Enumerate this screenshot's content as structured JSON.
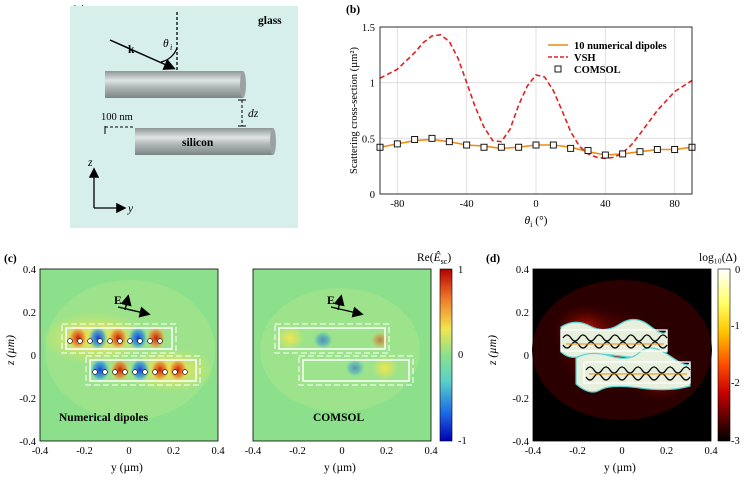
{
  "panels": {
    "a": {
      "label": "(a)",
      "medium": "glass",
      "wave_vector": "k",
      "angle_symbol": "θ",
      "angle_subscript": "i",
      "gap_label": "dz",
      "offset_label": "100 nm",
      "rod_label": "silicon",
      "axis_z": "z",
      "axis_y": "y",
      "colors": {
        "background": "#d6efeb",
        "rod": "#b7bdbd"
      }
    },
    "b": {
      "label": "(b)"
    },
    "c": {
      "label": "(c)",
      "left_title": "Numerical dipoles",
      "right_title": "COMSOL",
      "field_label": "E",
      "xlabel": "y (µm)",
      "ylabel": "z (µm)",
      "x_ticks": [
        "-0.4",
        "-0.2",
        "0",
        "0.2",
        "0.4"
      ],
      "y_ticks": [
        "0.4",
        "0.2",
        "0",
        "-0.2",
        "-0.4"
      ],
      "colorbar_title_prefix": "Re(",
      "colorbar_title_symbol": "Ê",
      "colorbar_title_sub": "sc",
      "colorbar_title_suffix": ")",
      "colorbar_ticks": [
        "1",
        "0",
        "-1"
      ],
      "colormap": [
        "#0000b4",
        "#1e6ee6",
        "#5ad2c8",
        "#8ce08c",
        "#f0e650",
        "#f07828",
        "#b40000"
      ]
    },
    "d": {
      "label": "(d)",
      "xlabel": "y (µm)",
      "ylabel": "z (µm)",
      "x_ticks": [
        "-0.4",
        "-0.2",
        "0",
        "0.2",
        "0.4"
      ],
      "y_ticks": [
        "0.4",
        "0.2",
        "0",
        "-0.2",
        "-0.4"
      ],
      "colorbar_title": "log₁₀(Δ)",
      "colorbar_ticks": [
        "0",
        "-1",
        "-2",
        "-3"
      ],
      "colormap": [
        "#ffffff",
        "#ffff64",
        "#ffc800",
        "#ff5000",
        "#c80000",
        "#500000",
        "#000000"
      ]
    }
  },
  "chart_data": {
    "type": "line",
    "title": "",
    "xlabel": "θi (°)",
    "ylabel": "Scattering cross-section (µm²)",
    "xlim": [
      -90,
      90
    ],
    "ylim": [
      0,
      1.5
    ],
    "x_ticks": [
      -80,
      -40,
      0,
      40,
      80
    ],
    "y_ticks": [
      0,
      0.5,
      1,
      1.5
    ],
    "grid": true,
    "legend_position": "top-right",
    "series": [
      {
        "name": "10 numerical dipoles",
        "style": "solid",
        "color": "#f08c14",
        "x": [
          -90,
          -80,
          -70,
          -60,
          -50,
          -40,
          -30,
          -20,
          -10,
          0,
          10,
          20,
          30,
          40,
          50,
          60,
          70,
          80,
          90
        ],
        "y": [
          0.42,
          0.45,
          0.48,
          0.49,
          0.47,
          0.44,
          0.43,
          0.41,
          0.42,
          0.44,
          0.44,
          0.42,
          0.38,
          0.35,
          0.36,
          0.38,
          0.4,
          0.4,
          0.42
        ]
      },
      {
        "name": "VSH",
        "style": "dashed",
        "color": "#e61e1e",
        "x": [
          -90,
          -80,
          -70,
          -65,
          -60,
          -55,
          -50,
          -45,
          -40,
          -35,
          -30,
          -25,
          -20,
          -15,
          -10,
          -5,
          0,
          5,
          10,
          15,
          20,
          25,
          30,
          35,
          40,
          45,
          50,
          55,
          60,
          70,
          80,
          90
        ],
        "y": [
          1.04,
          1.12,
          1.27,
          1.36,
          1.42,
          1.43,
          1.37,
          1.22,
          1.0,
          0.78,
          0.6,
          0.48,
          0.47,
          0.58,
          0.8,
          0.97,
          1.07,
          1.05,
          0.93,
          0.75,
          0.56,
          0.43,
          0.36,
          0.33,
          0.32,
          0.33,
          0.37,
          0.44,
          0.54,
          0.75,
          0.92,
          1.02
        ]
      },
      {
        "name": "COMSOL",
        "style": "markers",
        "color": "#000000",
        "x": [
          -90,
          -80,
          -70,
          -60,
          -50,
          -40,
          -30,
          -20,
          -10,
          0,
          10,
          20,
          30,
          40,
          50,
          60,
          70,
          80,
          90
        ],
        "y": [
          0.42,
          0.45,
          0.49,
          0.5,
          0.47,
          0.44,
          0.42,
          0.42,
          0.42,
          0.44,
          0.44,
          0.41,
          0.39,
          0.35,
          0.36,
          0.38,
          0.4,
          0.4,
          0.42
        ]
      }
    ]
  }
}
